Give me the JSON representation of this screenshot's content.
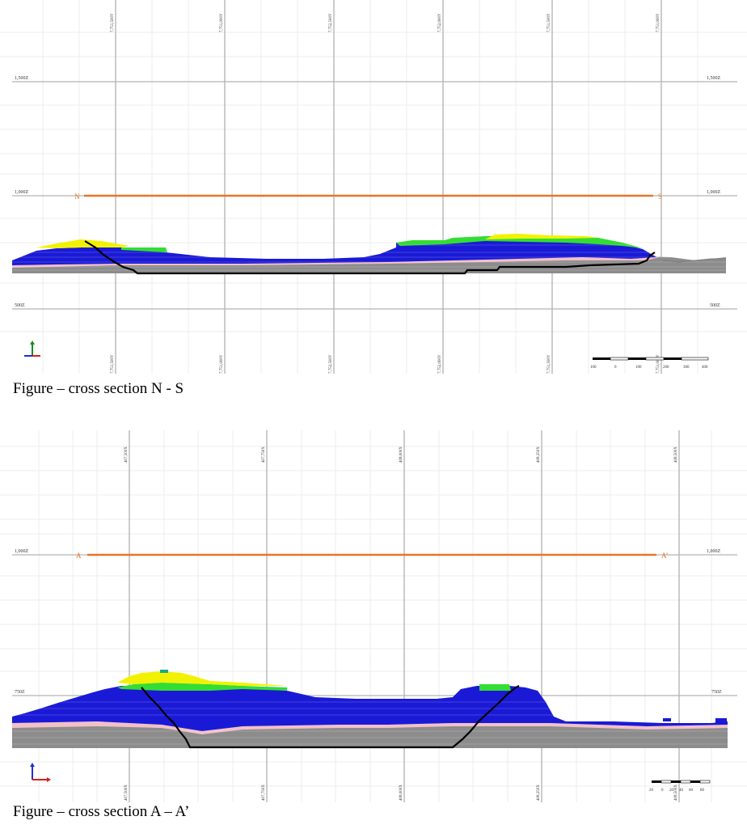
{
  "section1": {
    "caption": "Figure – cross section N - S",
    "top_grid_labels": [
      "7,751,500Y",
      "7,751,000Y",
      "7,752,500Y",
      "7,752,000Y",
      "7,751,500Y",
      "7,751,000Y"
    ],
    "bottom_grid_labels": [
      "7,751,500Y",
      "7,751,000Y",
      "7,752,500Y",
      "7,752,000Y",
      "7,751,500Y",
      "7,751,000Y"
    ],
    "elevation_labels": [
      "1,500Z",
      "1,000Z",
      "500Z"
    ],
    "line_start_label": "N",
    "line_end_label": "S",
    "scale_labels": [
      "100",
      "0",
      "100",
      "200",
      "300",
      "400"
    ]
  },
  "section2": {
    "caption": "Figure – cross section A – A’",
    "top_grid_labels": [
      "407,500X",
      "407,750X",
      "408,000X",
      "408,250X",
      "408,500X"
    ],
    "bottom_grid_labels": [
      "407,500X",
      "407,750X",
      "408,000X",
      "408,250X",
      "408,500X"
    ],
    "elevation_labels": [
      "1,000Z",
      "750Z"
    ],
    "line_start_label": "A",
    "line_end_label": "A’",
    "scale_labels": [
      "20",
      "0",
      "20",
      "40",
      "60",
      "80"
    ]
  },
  "colors": {
    "section_line": "#e8742a",
    "oxide_yellow": "#f2f200",
    "green_unit": "#33dd33",
    "blue_unit": "#1a1ad6",
    "pink_unit": "#f4c0c8",
    "grey_unit": "#8c8c8c",
    "pit_outline": "#000000",
    "grid_major": "#9a9a9a",
    "grid_minor": "#ededed"
  },
  "icons": [
    "axis-triad-icon",
    "axis-triad-icon"
  ]
}
